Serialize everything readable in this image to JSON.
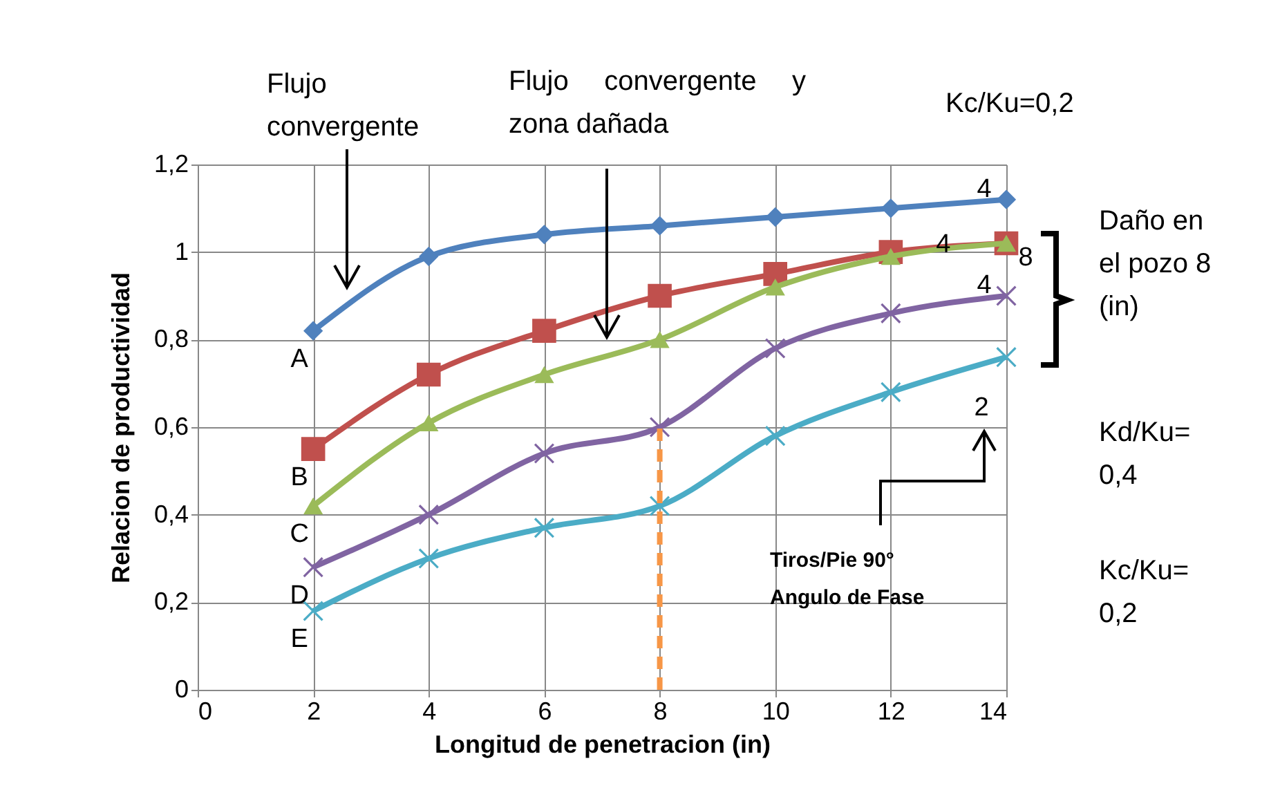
{
  "chart_data": {
    "type": "line",
    "xlabel": "Longitud de penetracion (in)",
    "ylabel": "Relacion de productividad",
    "x": [
      2,
      4,
      6,
      8,
      10,
      12,
      14
    ],
    "series": [
      {
        "color": "#4f81bd",
        "marker": "diamond",
        "values": [
          0.82,
          0.99,
          1.04,
          1.06,
          1.08,
          1.1,
          1.12
        ]
      },
      {
        "color": "#c0504d",
        "marker": "square",
        "values": [
          0.55,
          0.72,
          0.82,
          0.9,
          0.95,
          1.0,
          1.02
        ]
      },
      {
        "color": "#9bbb59",
        "marker": "triangle",
        "values": [
          0.42,
          0.61,
          0.72,
          0.8,
          0.92,
          0.99,
          1.02
        ]
      },
      {
        "color": "#8064a2",
        "marker": "cross",
        "values": [
          0.28,
          0.4,
          0.54,
          0.6,
          0.78,
          0.86,
          0.9
        ]
      },
      {
        "color": "#4bacc6",
        "marker": "cross",
        "values": [
          0.18,
          0.3,
          0.37,
          0.42,
          0.58,
          0.68,
          0.76
        ]
      },
      {
        "type": "line",
        "color": "#f79646",
        "marker": "none",
        "line_style": "dashed",
        "x": [
          8,
          8
        ],
        "values": [
          0,
          0.6
        ]
      }
    ],
    "xlim": [
      0,
      14
    ],
    "xticks": [
      0,
      2,
      4,
      6,
      8,
      10,
      12,
      14
    ],
    "ylim": [
      0,
      1.2
    ],
    "yticks": [
      0,
      {
        "value": 0.2,
        "label": "0,2"
      },
      {
        "value": 0.4,
        "label": "0,4"
      },
      {
        "value": 0.6,
        "label": "0,6"
      },
      {
        "value": 0.8,
        "label": "0,8"
      },
      1,
      {
        "value": 1.2,
        "label": "1,2"
      }
    ],
    "grid": true,
    "annotations": [
      "Flujo convergente",
      "Flujo convergente y zona dañada",
      "Kc/Ku=0,2",
      "Daño en el pozo 8 (in)",
      "Kd/Ku= 0,4",
      "Kc/Ku= 0,2",
      "Tiros/Pie 90° Angulo de Fase",
      {
        "text": "A",
        "x": 2,
        "y": 0.82
      },
      {
        "text": "B",
        "x": 2,
        "y": 0.55
      },
      {
        "text": "C",
        "x": 2,
        "y": 0.42
      },
      {
        "text": "D",
        "x": 2,
        "y": 0.28
      },
      {
        "text": "E",
        "x": 2,
        "y": 0.18
      },
      {
        "text": "4",
        "x": 14,
        "y": 1.12
      },
      {
        "text": "4",
        "x": 12,
        "y": 1.0
      },
      {
        "text": "8",
        "x": 14,
        "y": 1.02
      },
      {
        "text": "4",
        "x": 14,
        "y": 0.9
      },
      {
        "text": "2",
        "x": 14,
        "y": 0.76
      }
    ]
  }
}
